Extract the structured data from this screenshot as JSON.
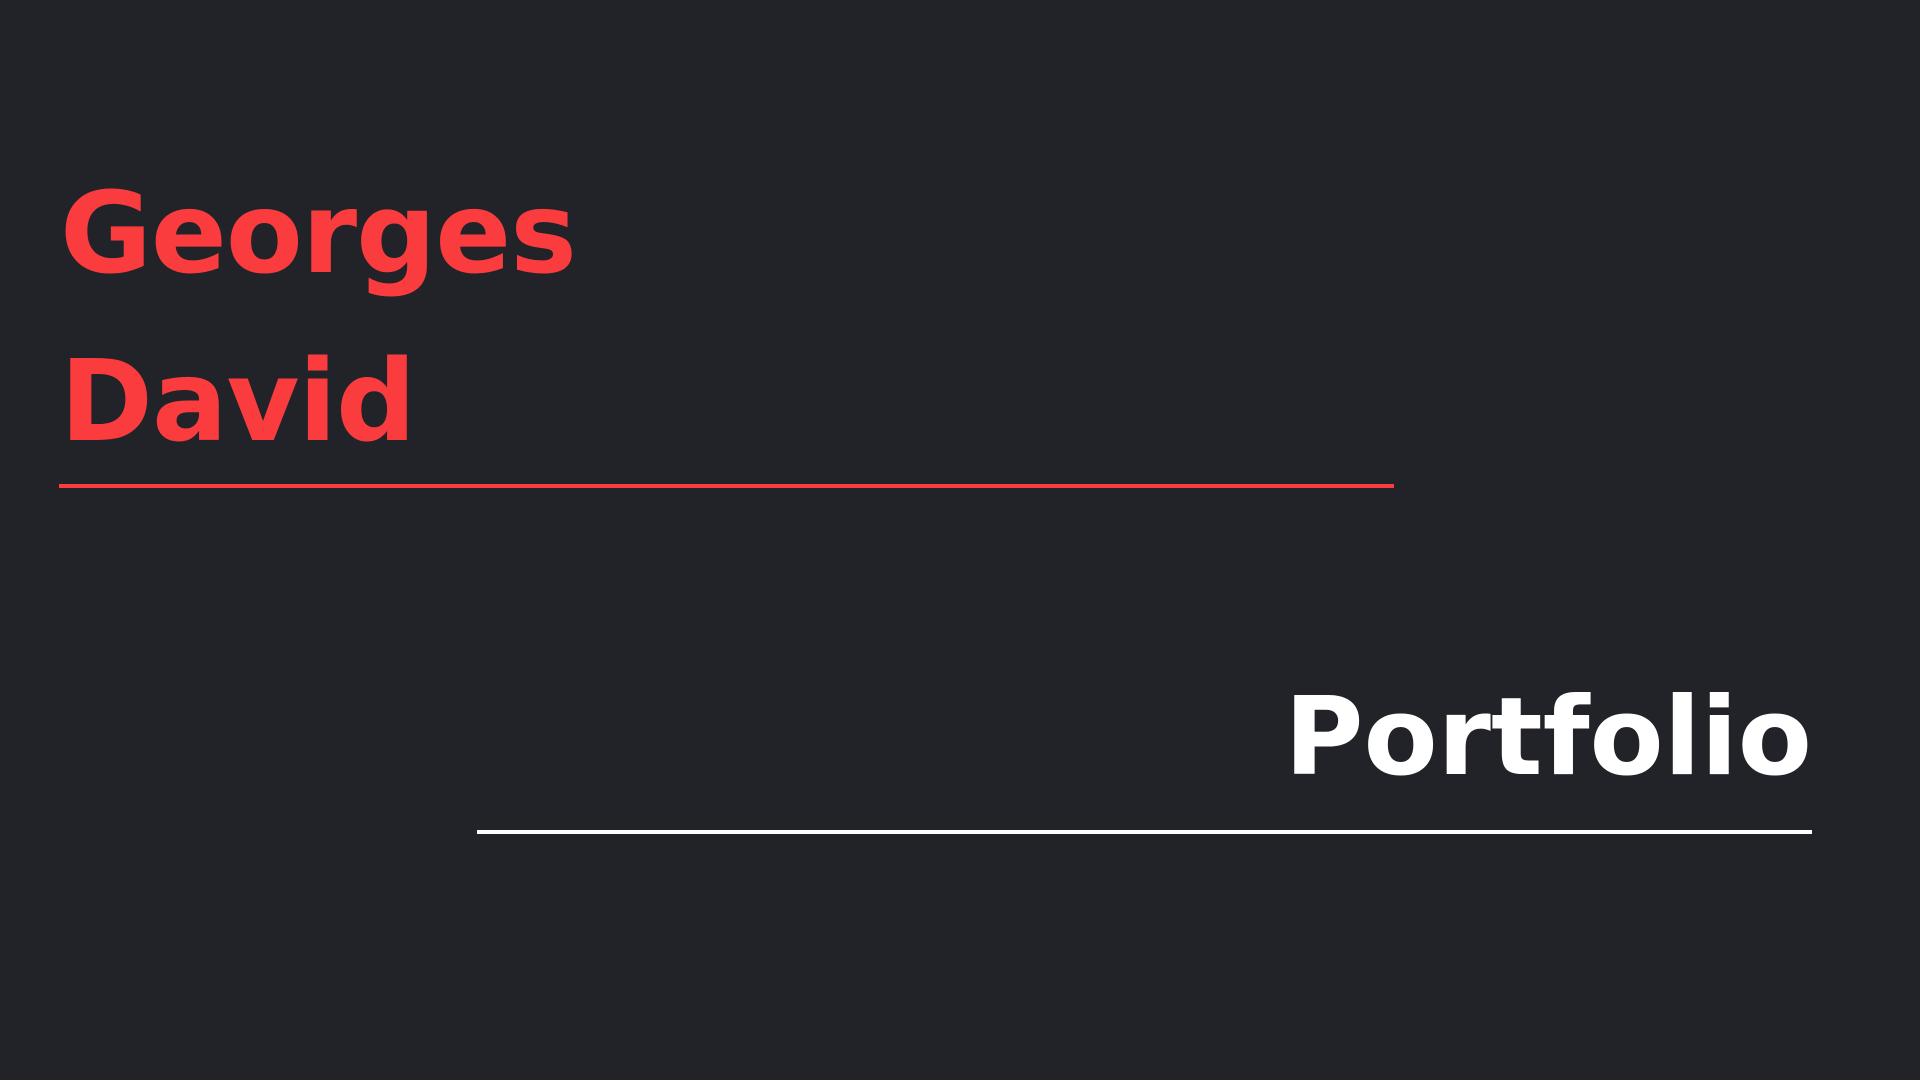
{
  "slide": {
    "name_line_1": "Georges",
    "name_line_2": "David",
    "subtitle": "Portfolio"
  },
  "colors": {
    "background": "#212328",
    "accent": "#fb3c3f",
    "text_light": "#ffffff"
  }
}
